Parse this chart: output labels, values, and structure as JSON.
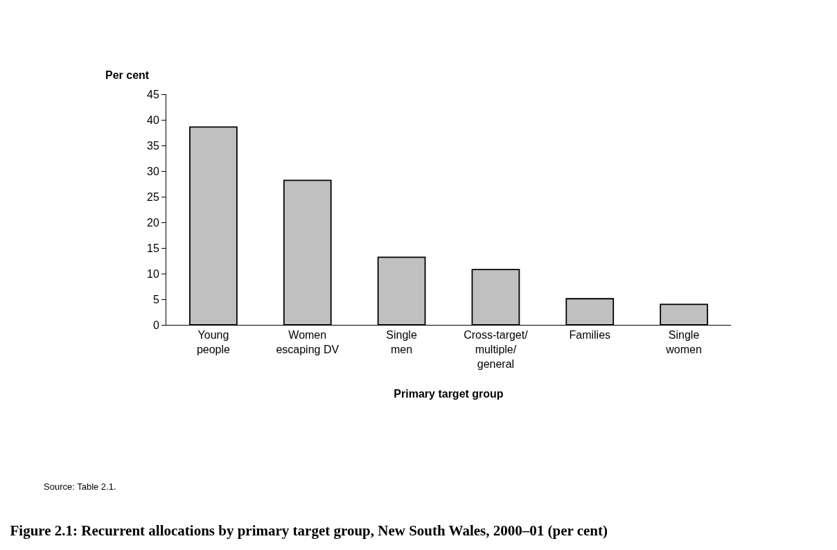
{
  "chart_data": {
    "type": "bar",
    "title": "Figure 2.1: Recurrent allocations by primary target group, New South Wales, 2000–01 (per cent)",
    "ylabel": "Per cent",
    "xlabel": "Primary target group",
    "categories": [
      "Young\npeople",
      "Women\nescaping DV",
      "Single\nmen",
      "Cross-target/\nmultiple/\ngeneral",
      "Families",
      "Single\nwomen"
    ],
    "values": [
      38.6,
      28.2,
      13.2,
      10.8,
      5.1,
      4.0
    ],
    "color": "#c0c0c0",
    "ylim": [
      0,
      45
    ],
    "yticks": [
      0,
      5,
      10,
      15,
      20,
      25,
      30,
      35,
      40,
      45
    ],
    "annotations": [
      "Source: Table 2.1."
    ]
  }
}
